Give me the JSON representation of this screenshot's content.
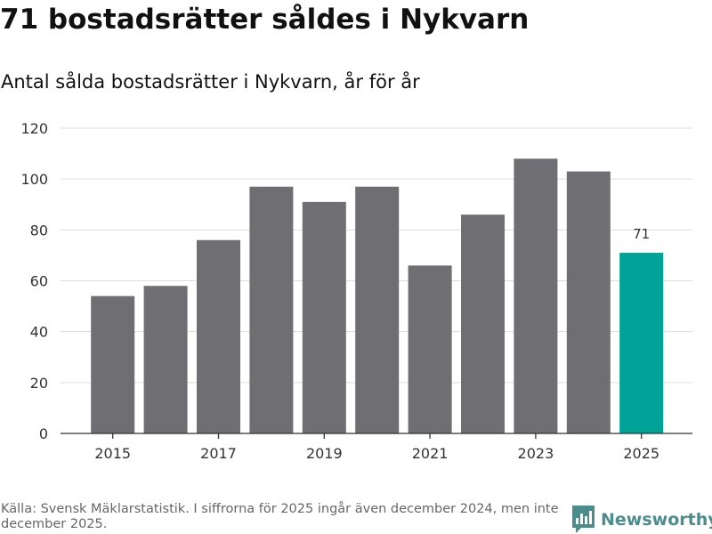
{
  "title": "71 bostadsrätter såldes i Nykvarn",
  "subtitle": "Antal sålda bostadsrätter i Nykvarn, år för år",
  "footer": {
    "source": "Källa: Svensk Mäklarstatistik. I siffrorna för 2025 ingår även december 2024, men inte december 2025.",
    "brand": "Newsworthy"
  },
  "colors": {
    "bar": "#6e6e73",
    "highlight": "#00a398",
    "grid": "#dddddd",
    "axis": "#333333",
    "text": "#333333",
    "brand": "#4a8d8c"
  },
  "chart_data": {
    "type": "bar",
    "title": "71 bostadsrätter såldes i Nykvarn",
    "subtitle": "Antal sålda bostadsrätter i Nykvarn, år för år",
    "xlabel": "",
    "ylabel": "",
    "categories": [
      "2015",
      "2016",
      "2017",
      "2018",
      "2019",
      "2020",
      "2021",
      "2022",
      "2023",
      "2024",
      "2025"
    ],
    "values": [
      54,
      58,
      76,
      97,
      91,
      97,
      66,
      86,
      108,
      103,
      71
    ],
    "highlight_index": 10,
    "data_labels": [
      {
        "index": 10,
        "text": "71"
      }
    ],
    "x_tick_labels": [
      "2015",
      "2017",
      "2019",
      "2021",
      "2023",
      "2025"
    ],
    "y_ticks": [
      0,
      20,
      40,
      60,
      80,
      100,
      120
    ],
    "ylim": [
      0,
      120
    ],
    "grid": true,
    "legend": "none"
  }
}
